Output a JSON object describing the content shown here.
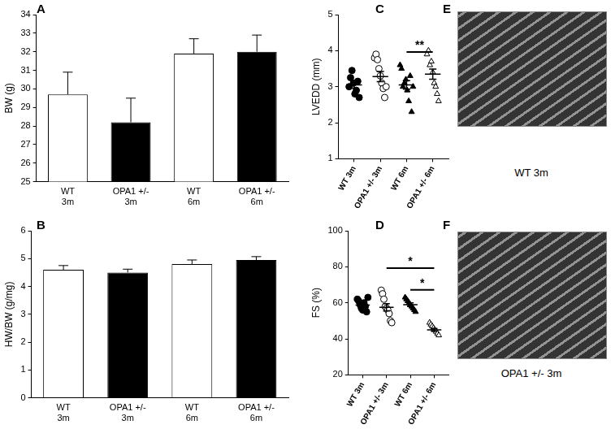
{
  "chart_data": [
    {
      "panel": "A",
      "type": "bar",
      "y_label": "BW (g)",
      "categories": [
        "WT 3m",
        "OPA1 +/- 3m",
        "WT 6m",
        "OPA1 +/- 6m"
      ],
      "values": [
        29.7,
        28.2,
        31.9,
        32.0
      ],
      "errors": [
        1.2,
        1.3,
        0.8,
        0.9
      ],
      "colors": [
        "#ffffff",
        "#000000",
        "#ffffff",
        "#000000"
      ],
      "ylim": [
        25,
        34
      ],
      "yticks": [
        25,
        26,
        27,
        28,
        29,
        30,
        31,
        32,
        33,
        34
      ],
      "grid": false
    },
    {
      "panel": "B",
      "type": "bar",
      "y_label": "HW/BW (g/mg)",
      "categories": [
        "WT 3m",
        "OPA1 +/- 3m",
        "WT 6m",
        "OPA1 +/- 6m"
      ],
      "values": [
        4.6,
        4.5,
        4.8,
        4.95
      ],
      "errors": [
        0.15,
        0.12,
        0.15,
        0.12
      ],
      "colors": [
        "#ffffff",
        "#000000",
        "#ffffff",
        "#000000"
      ],
      "ylim": [
        0,
        6
      ],
      "yticks": [
        0,
        1,
        2,
        3,
        4,
        5,
        6
      ],
      "grid": false
    },
    {
      "panel": "C",
      "type": "scatter",
      "y_label": "LVEDD (mm)",
      "categories": [
        "WT 3m",
        "OPA1 +/- 3m",
        "WT 6m",
        "OPA1 +/- 6m"
      ],
      "values": [
        [
          3.0,
          3.25,
          3.45,
          3.1,
          2.8,
          2.9,
          3.15,
          2.7
        ],
        [
          3.8,
          3.9,
          3.75,
          3.5,
          3.3,
          3.1,
          2.95,
          2.7,
          3.0
        ],
        [
          3.6,
          3.5,
          3.0,
          3.1,
          3.2,
          2.9,
          2.6,
          3.3,
          2.3,
          3.0
        ],
        [
          3.9,
          4.0,
          3.6,
          3.7,
          3.4,
          3.1,
          3.0,
          2.8,
          2.6
        ]
      ],
      "means": [
        3.05,
        3.28,
        3.05,
        3.35
      ],
      "sem": [
        0.09,
        0.14,
        0.12,
        0.14
      ],
      "markers": [
        "circle",
        "circle-open",
        "triangle",
        "triangle-open"
      ],
      "color": "#000000",
      "annotations": [
        {
          "from": "WT 6m",
          "to": "OPA1 +/- 6m",
          "text": "**"
        }
      ],
      "ylim": [
        1,
        5
      ],
      "yticks": [
        1,
        2,
        3,
        4,
        5
      ],
      "grid": false
    },
    {
      "panel": "D",
      "type": "scatter",
      "y_label": "FS (%)",
      "categories": [
        "WT 3m",
        "OPA1 +/- 3m",
        "WT 6m",
        "OPA1 +/- 6m"
      ],
      "values": [
        [
          62,
          61,
          59,
          57,
          56,
          60,
          58,
          55,
          63
        ],
        [
          67,
          65,
          62,
          58,
          57,
          56,
          54,
          50,
          49
        ],
        [
          63,
          62,
          61,
          60,
          59,
          58,
          57,
          56,
          55
        ],
        [
          49,
          48,
          47,
          46,
          45,
          44,
          43,
          42
        ]
      ],
      "means": [
        58.7,
        57.5,
        59,
        45
      ],
      "sem": [
        1.2,
        2.0,
        1.0,
        0.8
      ],
      "markers": [
        "circle",
        "circle-open",
        "triangle",
        "triangle-open"
      ],
      "color": "#000000",
      "annotations": [
        {
          "from": "OPA1 +/- 3m",
          "to": "OPA1 +/- 6m",
          "text": "*"
        },
        {
          "from": "WT 6m",
          "to": "OPA1 +/- 6m",
          "text": "*"
        }
      ],
      "ylim": [
        20,
        100
      ],
      "yticks": [
        20,
        40,
        60,
        80,
        100
      ],
      "grid": false
    }
  ],
  "images": [
    {
      "panel": "E",
      "caption": "WT 3m"
    },
    {
      "panel": "F",
      "caption": "OPA1 +/- 3m"
    }
  ]
}
